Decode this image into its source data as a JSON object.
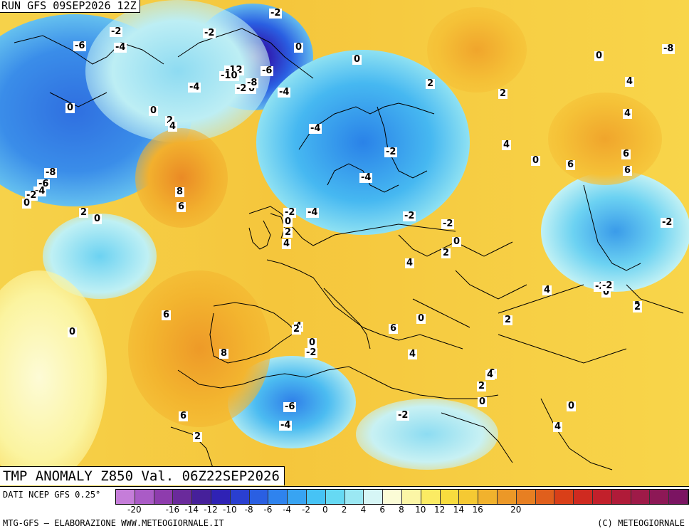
{
  "header": {
    "run": "RUN GFS 09SEP2026 12Z",
    "field": "TMP ANOMALY Z850 Val. 06Z22SEP2026"
  },
  "footer": {
    "source": "DATI NCEP GFS 0.25°",
    "credit_left": "MTG-GFS — ELABORAZIONE WWW.METEOGIORNALE.IT",
    "credit_right": "(C) METEOGIORNALE"
  },
  "legend": {
    "colors": [
      "#c57dd9",
      "#aa5bc6",
      "#8e3cad",
      "#6a2a9b",
      "#46209a",
      "#2f22b5",
      "#2a3fd0",
      "#2a5fe2",
      "#2f83ee",
      "#38a4f2",
      "#46c3f5",
      "#66d9f3",
      "#9be8f3",
      "#d6f6f6",
      "#fbfcd6",
      "#fcf6a6",
      "#fbeb63",
      "#f8dc3e",
      "#f5c933",
      "#f1b22d",
      "#ec9827",
      "#e77f22",
      "#e05f1c",
      "#d93f18",
      "#cf2a20",
      "#c2202b",
      "#b01b39",
      "#9e1a48",
      "#8d1856",
      "#7b1462"
    ],
    "ticks": [
      "-20",
      "-16",
      "-14",
      "-12",
      "-10",
      "-8",
      "-6",
      "-4",
      "-2",
      "0",
      "2",
      "4",
      "6",
      "8",
      "10",
      "12",
      "14",
      "16",
      "20"
    ],
    "tick_values": [
      -20,
      -16,
      -14,
      -12,
      -10,
      -8,
      -6,
      -4,
      -2,
      0,
      2,
      4,
      6,
      8,
      10,
      12,
      14,
      16,
      20
    ]
  },
  "map": {
    "labels": [
      "-2",
      "-2",
      "-2",
      "-6",
      "-4",
      "0",
      "0",
      "0",
      "-8",
      "0",
      "-6",
      "-12",
      "-10",
      "-2",
      "0",
      "-8",
      "-4",
      "-4",
      "2",
      "0",
      "2",
      "4",
      "-4",
      "-2",
      "-8",
      "-6",
      "-4",
      "-2",
      "0",
      "8",
      "2",
      "6",
      "0",
      "-2",
      "0",
      "-4",
      "2",
      "4",
      "-2",
      "-2",
      "-4",
      "2",
      "0",
      "2",
      "4",
      "4",
      "6",
      "6",
      "0",
      "6",
      "4",
      "4",
      "6",
      "0",
      "2",
      "-2",
      "-2",
      "0",
      "4",
      "2",
      "4",
      "0",
      "0",
      "-2",
      "8",
      "6",
      "2",
      "0",
      "2",
      "-6",
      "6",
      "4",
      "-4",
      "0",
      "0",
      "-2",
      "4",
      "-2",
      "2",
      "2",
      "4"
    ]
  }
}
